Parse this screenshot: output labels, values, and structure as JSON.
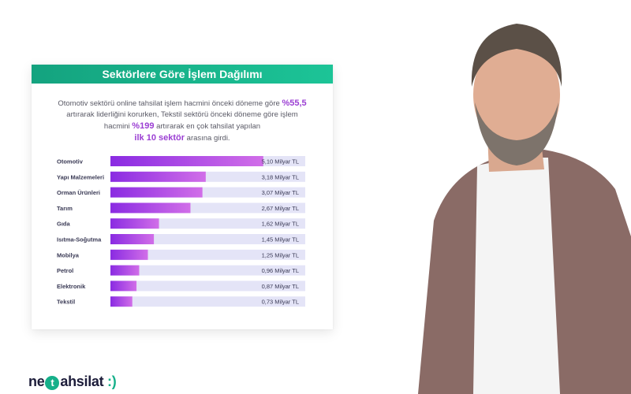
{
  "card": {
    "title": "Sektörlere Göre İşlem Dağılımı",
    "desc_part1": "Otomotiv sektörü online tahsilat işlem hacmini önceki döneme göre",
    "desc_hl1": "%55,5",
    "desc_part2": "artırarak liderliğini korurken, Tekstil sektörü önceki döneme göre işlem hacmini",
    "desc_hl2": "%199",
    "desc_part3": "artırarak en çok tahsilat yapılan",
    "desc_hl3": "ilk 10 sektör",
    "desc_part4": "arasına girdi."
  },
  "chart_data": {
    "type": "bar",
    "orientation": "horizontal",
    "categories": [
      "Otomotiv",
      "Yapı Malzemeleri",
      "Orman Ürünleri",
      "Tarım",
      "Gıda",
      "Isıtma-Soğutma",
      "Mobilya",
      "Petrol",
      "Elektronik",
      "Tekstil"
    ],
    "values": [
      5.1,
      3.18,
      3.07,
      2.67,
      1.62,
      1.45,
      1.25,
      0.96,
      0.87,
      0.73
    ],
    "value_labels": [
      "5,10 Milyar TL",
      "3,18 Milyar TL",
      "3,07 Milyar TL",
      "2,67 Milyar TL",
      "1,62 Milyar TL",
      "1,45 Milyar TL",
      "1,25 Milyar TL",
      "0,96 Milyar TL",
      "0,87 Milyar TL",
      "0,73 Milyar TL"
    ],
    "xlim": [
      0,
      6.5
    ],
    "title": "Sektörlere Göre İşlem Dağılımı",
    "xlabel": "",
    "ylabel": "",
    "grid": false,
    "colors": {
      "bar_start": "#8a2be2",
      "bar_end": "#d16ee8",
      "track": "#e4e4f7"
    }
  },
  "brand": {
    "pre": "ne",
    "t": "t",
    "post": "ahsilat",
    "smile": ":)"
  },
  "colors": {
    "header": "#18b58d",
    "highlight": "#9b3fd3"
  }
}
